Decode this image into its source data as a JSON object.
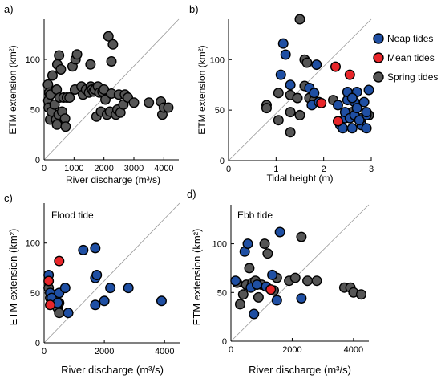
{
  "figure": {
    "legend": {
      "placement": "top-right of panel b",
      "entries": [
        {
          "label": "Neap tides",
          "color": "#1f4fa3"
        },
        {
          "label": "Mean tides",
          "color": "#e8262a"
        },
        {
          "label": "Spring tides",
          "color": "#555555"
        }
      ]
    }
  },
  "chart_data": [
    {
      "panel": "a)",
      "type": "scatter",
      "title": "",
      "xlabel": "River discharge (m³/s)",
      "ylabel": "ETM extension (km²)",
      "xlim": [
        0,
        4500
      ],
      "ylim": [
        0,
        140
      ],
      "xticks": [
        0,
        1000,
        2000,
        3000,
        4000
      ],
      "yticks": [
        0,
        50,
        100
      ],
      "diagonal": true,
      "series": [
        {
          "name": "Spring tides",
          "color": "#555555",
          "points": [
            [
              130,
              75
            ],
            [
              140,
              59
            ],
            [
              150,
              52
            ],
            [
              170,
              67
            ],
            [
              200,
              40
            ],
            [
              210,
              65
            ],
            [
              250,
              48
            ],
            [
              280,
              84
            ],
            [
              350,
              55
            ],
            [
              400,
              40
            ],
            [
              420,
              70
            ],
            [
              430,
              35
            ],
            [
              440,
              95
            ],
            [
              480,
              45
            ],
            [
              500,
              104
            ],
            [
              520,
              62
            ],
            [
              560,
              90
            ],
            [
              600,
              48
            ],
            [
              650,
              62
            ],
            [
              700,
              41
            ],
            [
              720,
              33
            ],
            [
              760,
              62
            ],
            [
              850,
              62
            ],
            [
              950,
              93
            ],
            [
              1030,
              70
            ],
            [
              1050,
              100
            ],
            [
              1100,
              105
            ],
            [
              1250,
              73
            ],
            [
              1300,
              65
            ],
            [
              1400,
              70
            ],
            [
              1500,
              67
            ],
            [
              1550,
              95
            ],
            [
              1560,
              73
            ],
            [
              1600,
              70
            ],
            [
              1650,
              68
            ],
            [
              1700,
              70
            ],
            [
              1750,
              43
            ],
            [
              1800,
              73
            ],
            [
              1850,
              67
            ],
            [
              1900,
              48
            ],
            [
              1950,
              68
            ],
            [
              2000,
              70
            ],
            [
              2050,
              60
            ],
            [
              2100,
              45
            ],
            [
              2150,
              123
            ],
            [
              2200,
              48
            ],
            [
              2250,
              66
            ],
            [
              2250,
              98
            ],
            [
              2300,
              115
            ],
            [
              2400,
              45
            ],
            [
              2450,
              50
            ],
            [
              2500,
              65
            ],
            [
              2550,
              47
            ],
            [
              2650,
              55
            ],
            [
              2700,
              65
            ],
            [
              2800,
              62
            ],
            [
              3000,
              57
            ],
            [
              3500,
              57
            ],
            [
              3900,
              58
            ],
            [
              3950,
              45
            ],
            [
              4000,
              52
            ],
            [
              4150,
              52
            ]
          ]
        }
      ]
    },
    {
      "panel": "b)",
      "type": "scatter",
      "title": "",
      "xlabel": "Tidal height (m)",
      "ylabel": "ETM extension (km²)",
      "xlim": [
        0,
        3
      ],
      "ylim": [
        0,
        140
      ],
      "xticks": [
        0,
        1,
        2,
        3
      ],
      "yticks": [
        0,
        50,
        100
      ],
      "diagonal": true,
      "series": [
        {
          "name": "Neap tides",
          "color": "#1f4fa3",
          "points": [
            [
              1.15,
              116
            ],
            [
              1.2,
              105
            ],
            [
              1.3,
              75
            ],
            [
              1.1,
              85
            ],
            [
              1.7,
              72
            ],
            [
              1.75,
              55
            ],
            [
              1.8,
              67
            ],
            [
              1.85,
              95
            ],
            [
              1.9,
              58
            ],
            [
              2.3,
              55
            ],
            [
              2.35,
              35
            ],
            [
              2.4,
              32
            ],
            [
              2.45,
              42
            ],
            [
              2.45,
              48
            ],
            [
              2.5,
              60
            ],
            [
              2.5,
              68
            ],
            [
              2.55,
              42
            ],
            [
              2.6,
              32
            ],
            [
              2.65,
              45
            ],
            [
              2.65,
              58
            ],
            [
              2.7,
              52
            ],
            [
              2.7,
              68
            ],
            [
              2.8,
              35
            ],
            [
              2.85,
              58
            ],
            [
              2.9,
              45
            ],
            [
              2.9,
              48
            ],
            [
              2.95,
              70
            ],
            [
              2.6,
              62
            ],
            [
              2.75,
              40
            ],
            [
              2.9,
              32
            ]
          ]
        },
        {
          "name": "Mean tides",
          "color": "#e8262a",
          "points": [
            [
              2.25,
              93
            ],
            [
              2.55,
              85
            ],
            [
              1.95,
              57
            ],
            [
              2.3,
              39
            ]
          ]
        },
        {
          "name": "Spring tides",
          "color": "#555555",
          "points": [
            [
              0.8,
              55
            ],
            [
              0.8,
              52
            ],
            [
              1.05,
              40
            ],
            [
              1.05,
              67
            ],
            [
              1.3,
              65
            ],
            [
              1.5,
              140
            ],
            [
              1.6,
              100
            ],
            [
              1.65,
              97
            ],
            [
              1.7,
              62
            ],
            [
              1.6,
              74
            ],
            [
              1.45,
              62
            ],
            [
              1.3,
              28
            ],
            [
              1.5,
              45
            ],
            [
              1.8,
              60
            ],
            [
              1.3,
              48
            ],
            [
              2.2,
              60
            ],
            [
              2.6,
              48
            ],
            [
              2.6,
              62
            ],
            [
              2.95,
              45
            ],
            [
              2.8,
              42
            ]
          ]
        }
      ]
    },
    {
      "panel": "c)",
      "type": "scatter",
      "title": "Flood tide",
      "xlabel": "River discharge (m³/s)",
      "ylabel": "ETM extension (km²)",
      "xlim": [
        0,
        4500
      ],
      "ylim": [
        0,
        140
      ],
      "xticks": [
        0,
        2000,
        4000
      ],
      "yticks": [
        0,
        50,
        100
      ],
      "diagonal": true,
      "series": [
        {
          "name": "Neap tides",
          "color": "#1f4fa3",
          "points": [
            [
              150,
              68
            ],
            [
              200,
              50
            ],
            [
              250,
              45
            ],
            [
              450,
              40
            ],
            [
              500,
              50
            ],
            [
              700,
              55
            ],
            [
              1300,
              93
            ],
            [
              1700,
              95
            ],
            [
              1700,
              65
            ],
            [
              1750,
              68
            ],
            [
              2000,
              42
            ],
            [
              2200,
              55
            ],
            [
              2800,
              55
            ],
            [
              3900,
              42
            ],
            [
              1700,
              38
            ],
            [
              800,
              30
            ]
          ]
        },
        {
          "name": "Mean tides",
          "color": "#e8262a",
          "points": [
            [
              500,
              82
            ],
            [
              200,
              38
            ],
            [
              150,
              62
            ]
          ]
        },
        {
          "name": "Spring tides",
          "color": "#555555",
          "points": [
            [
              150,
              55
            ],
            [
              200,
              45
            ],
            [
              450,
              35
            ],
            [
              500,
              30
            ],
            [
              500,
              40
            ]
          ]
        }
      ]
    },
    {
      "panel": "d)",
      "type": "scatter",
      "title": "Ebb tide",
      "xlabel": "River discharge (m³/s)",
      "ylabel": "ETM extension (km²)",
      "xlim": [
        0,
        4500
      ],
      "ylim": [
        0,
        140
      ],
      "xticks": [
        0,
        2000,
        4000
      ],
      "yticks": [
        0,
        50,
        100
      ],
      "diagonal": true,
      "series": [
        {
          "name": "Neap tides",
          "color": "#1f4fa3",
          "points": [
            [
              150,
              62
            ],
            [
              450,
              92
            ],
            [
              550,
              100
            ],
            [
              650,
              55
            ],
            [
              750,
              28
            ],
            [
              850,
              58
            ],
            [
              1350,
              68
            ],
            [
              1500,
              42
            ],
            [
              1600,
              112
            ],
            [
              2300,
              44
            ],
            [
              1150,
              56
            ]
          ]
        },
        {
          "name": "Mean tides",
          "color": "#e8262a",
          "points": [
            [
              1300,
              53
            ]
          ]
        },
        {
          "name": "Spring tides",
          "color": "#555555",
          "points": [
            [
              200,
              60
            ],
            [
              300,
              38
            ],
            [
              400,
              48
            ],
            [
              500,
              58
            ],
            [
              600,
              75
            ],
            [
              700,
              60
            ],
            [
              800,
              62
            ],
            [
              900,
              45
            ],
            [
              1000,
              58
            ],
            [
              1100,
              100
            ],
            [
              1200,
              90
            ],
            [
              1400,
              52
            ],
            [
              1500,
              65
            ],
            [
              1900,
              62
            ],
            [
              2100,
              65
            ],
            [
              2300,
              107
            ],
            [
              2500,
              62
            ],
            [
              2800,
              62
            ],
            [
              3700,
              55
            ],
            [
              3900,
              55
            ],
            [
              4000,
              50
            ],
            [
              4250,
              48
            ]
          ]
        }
      ]
    }
  ]
}
